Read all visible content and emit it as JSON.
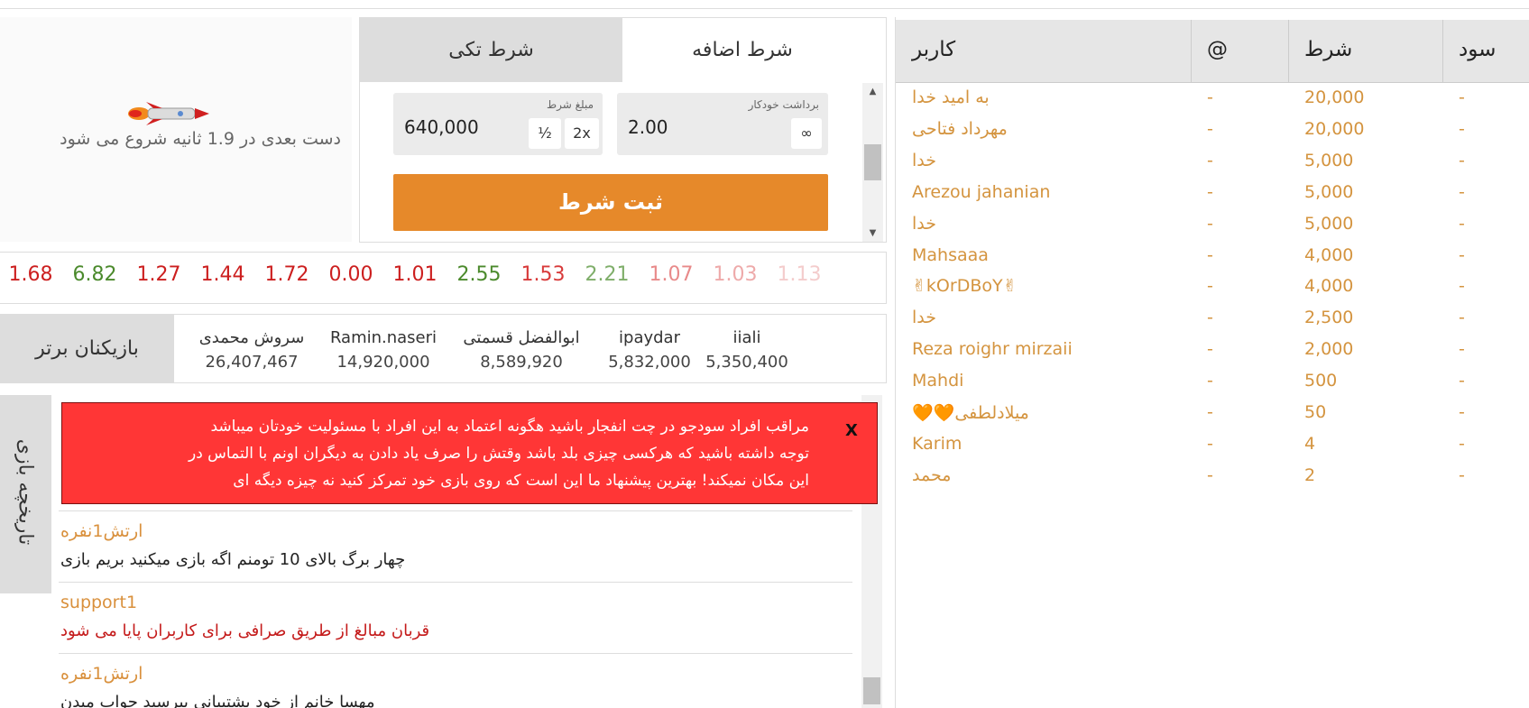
{
  "countdown_text": "دست بعدی در 1.9 ثانیه شروع می شود",
  "bet_panel": {
    "tabs": [
      "شرط تکی",
      "شرط اضافه"
    ],
    "bet_amount_label": "مبلغ شرط",
    "bet_amount": "640,000",
    "half_button": "½",
    "double_button": "2x",
    "auto_cashout_label": "برداشت خودکار",
    "auto_cashout": "2.00",
    "infinity_button": "∞",
    "submit": "ثبت شرط"
  },
  "multipliers": [
    {
      "value": "1.68",
      "color": "#cc1f1f"
    },
    {
      "value": "6.82",
      "color": "#4b8a2c"
    },
    {
      "value": "1.27",
      "color": "#cc1f1f"
    },
    {
      "value": "1.44",
      "color": "#cc1f1f"
    },
    {
      "value": "1.72",
      "color": "#cc1f1f"
    },
    {
      "value": "0.00",
      "color": "#cc1f1f"
    },
    {
      "value": "1.01",
      "color": "#cc1f1f"
    },
    {
      "value": "2.55",
      "color": "#4b8a2c"
    },
    {
      "value": "1.53",
      "color": "#d83a3a"
    },
    {
      "value": "2.21",
      "color": "#7fae6a"
    },
    {
      "value": "1.07",
      "color": "#e88a8a"
    },
    {
      "value": "1.03",
      "color": "#eeaaaa"
    },
    {
      "value": "1.13",
      "color": "#f4cccc"
    }
  ],
  "top_players": {
    "title": "بازیکنان برتر",
    "players": [
      {
        "name": "سروش محمدی",
        "score": "26,407,467"
      },
      {
        "name": "Ramin.naseri",
        "score": "14,920,000"
      },
      {
        "name": "ابوالفضل قسمتی",
        "score": "8,589,920"
      },
      {
        "name": "ipaydar",
        "score": "5,832,000"
      },
      {
        "name": "iiali",
        "score": "5,350,400"
      }
    ]
  },
  "chat": {
    "history_tab": "تاریخچه بازی",
    "warning": {
      "close": "X",
      "lines": [
        "مراقب افراد سودجو در چت انفجار باشید هگونه اعتماد به این افراد با مسئولیت خودتان میباشد",
        "توجه داشته باشید که هرکسی چیزی بلد باشد وقتش را صرف یاد دادن به دیگران اونم با التماس در",
        "این مکان نمیکند! بهترین پیشنهاد ما این است که روی بازی خود تمرکز کنید نه چیزه دیگه ای"
      ]
    },
    "messages": [
      {
        "user": "ارتش1نفره",
        "text": "چهار برگ بالای 10 تومنم اگه بازی میکنید بریم بازی"
      },
      {
        "user": "support1",
        "text": "قربان مبالغ از طریق صرافی برای کاربران پایا می شود"
      },
      {
        "user": "ارتش1نفره",
        "text": "مهسا خانم از خود پشتیبانی بپرسید جواب میدن"
      }
    ]
  },
  "bets_table": {
    "headers": [
      "کاربر",
      "@",
      "شرط",
      "سود"
    ],
    "rows": [
      [
        "به امید خدا",
        "-",
        "20,000",
        "-"
      ],
      [
        "مهرداد فتاحی",
        "-",
        "20,000",
        "-"
      ],
      [
        "خدا",
        "-",
        "5,000",
        "-"
      ],
      [
        "Arezou jahanian",
        "-",
        "5,000",
        "-"
      ],
      [
        "خدا",
        "-",
        "5,000",
        "-"
      ],
      [
        "Mahsaaa",
        "-",
        "4,000",
        "-"
      ],
      [
        "✌kOrDBoY✌",
        "-",
        "4,000",
        "-"
      ],
      [
        "خدا",
        "-",
        "2,500",
        "-"
      ],
      [
        "Reza roighr mirzaii",
        "-",
        "2,000",
        "-"
      ],
      [
        "Mahdi",
        "-",
        "500",
        "-"
      ],
      [
        "🧡🧡میلادلطفی",
        "-",
        "50",
        "-"
      ],
      [
        "Karim",
        "-",
        "4",
        "-"
      ],
      [
        "محمد",
        "-",
        "2",
        "-"
      ]
    ]
  }
}
